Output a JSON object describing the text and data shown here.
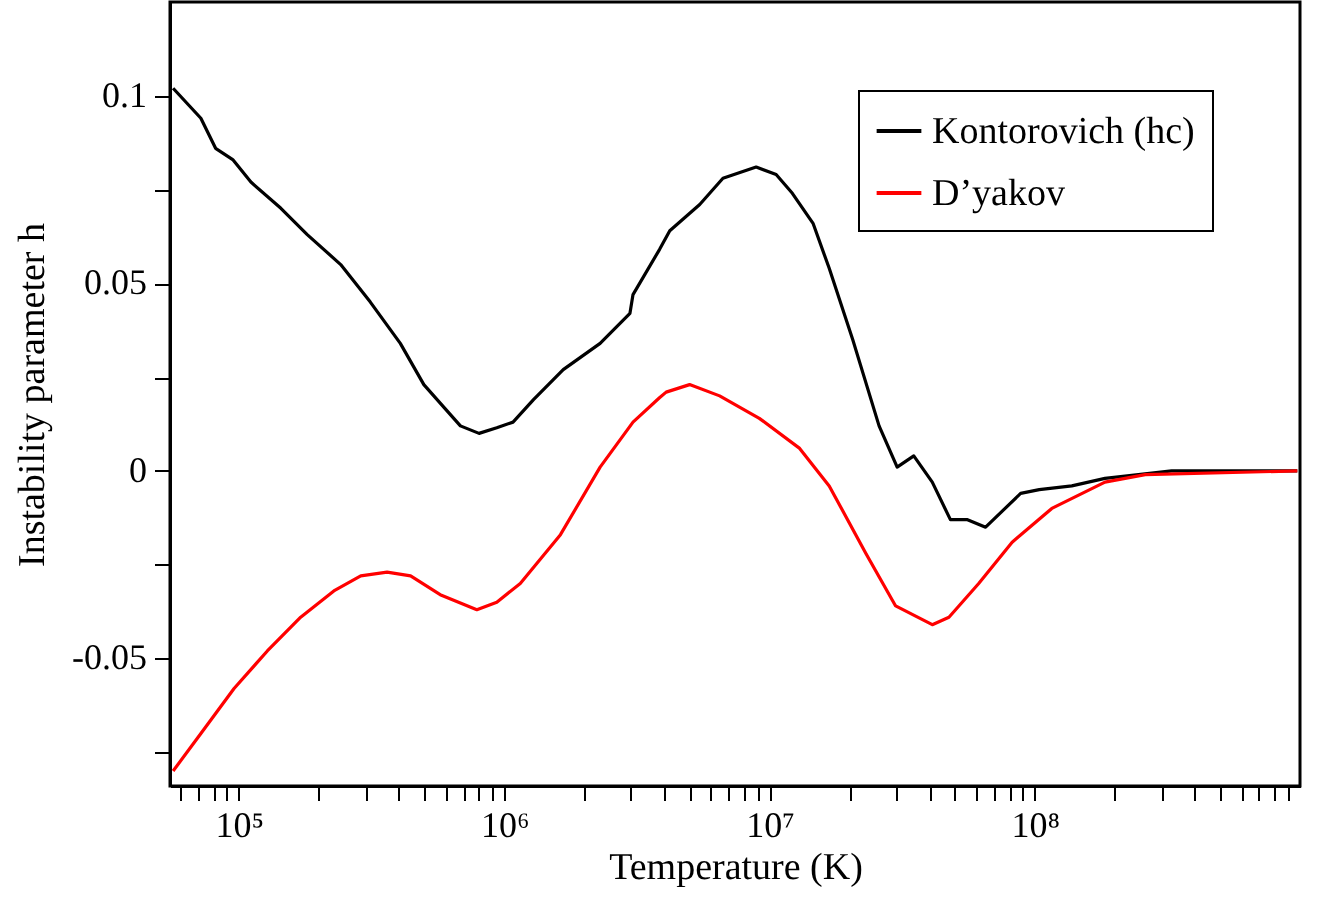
{
  "chart_data": {
    "type": "line",
    "xlabel": "Temperature (K)",
    "ylabel": "Instability parameter h",
    "log": "x",
    "grid": false,
    "legend": "top right",
    "xlim": [
      55000,
      1000000000
    ],
    "ylim": [
      -0.084,
      0.125
    ],
    "xticks": [
      {
        "value": 60000,
        "label": null
      },
      {
        "value": 70000,
        "label": null
      },
      {
        "value": 80000,
        "label": null
      },
      {
        "value": 90000,
        "label": null
      },
      {
        "value": 100000,
        "label": "10⁵"
      },
      {
        "value": 200000,
        "label": null
      },
      {
        "value": 300000,
        "label": null
      },
      {
        "value": 400000,
        "label": null
      },
      {
        "value": 500000,
        "label": null
      },
      {
        "value": 600000,
        "label": null
      },
      {
        "value": 700000,
        "label": null
      },
      {
        "value": 800000,
        "label": null
      },
      {
        "value": 900000,
        "label": null
      },
      {
        "value": 1000000,
        "label": "10⁶"
      },
      {
        "value": 2000000,
        "label": null
      },
      {
        "value": 3000000,
        "label": null
      },
      {
        "value": 4000000,
        "label": null
      },
      {
        "value": 5000000,
        "label": null
      },
      {
        "value": 6000000,
        "label": null
      },
      {
        "value": 7000000,
        "label": null
      },
      {
        "value": 8000000,
        "label": null
      },
      {
        "value": 9000000,
        "label": null
      },
      {
        "value": 10000000,
        "label": "10⁷"
      },
      {
        "value": 20000000,
        "label": null
      },
      {
        "value": 30000000,
        "label": null
      },
      {
        "value": 40000000,
        "label": null
      },
      {
        "value": 50000000,
        "label": null
      },
      {
        "value": 60000000,
        "label": null
      },
      {
        "value": 70000000,
        "label": null
      },
      {
        "value": 80000000,
        "label": null
      },
      {
        "value": 90000000,
        "label": null
      },
      {
        "value": 100000000,
        "label": "10⁸"
      },
      {
        "value": 200000000,
        "label": null
      },
      {
        "value": 300000000,
        "label": null
      },
      {
        "value": 400000000,
        "label": null
      },
      {
        "value": 500000000,
        "label": null
      },
      {
        "value": 600000000,
        "label": null
      },
      {
        "value": 700000000,
        "label": null
      },
      {
        "value": 800000000,
        "label": null
      },
      {
        "value": 900000000,
        "label": null
      }
    ],
    "yticks": [
      {
        "value": -0.075,
        "label": null
      },
      -0.05,
      {
        "value": -0.025,
        "label": null
      },
      0,
      {
        "value": 0.025,
        "label": null
      },
      0.05,
      {
        "value": 0.075,
        "label": null
      },
      0.1
    ],
    "series": [
      {
        "name": "Kontorovich (hc)",
        "color": "#000000",
        "x": [
          56500,
          71900,
          81700,
          94800,
          111000,
          144000,
          181000,
          242000,
          313000,
          406000,
          498000,
          592000,
          684000,
          804000,
          938000,
          1080000,
          1290000,
          1670000,
          2300000,
          2980000,
          3060000,
          3850000,
          4210000,
          5460000,
          6680000,
          8910000,
          10600000,
          12200000,
          14600000,
          16800000,
          20600000,
          25900000,
          30300000,
          35000000,
          41100000,
          48100000,
          55800000,
          65300000,
          88500000,
          104000000,
          138000000,
          184000000,
          246000000,
          328000000,
          977000000
        ],
        "values": [
          0.102,
          0.094,
          0.086,
          0.083,
          0.077,
          0.07,
          0.063,
          0.055,
          0.045,
          0.034,
          0.023,
          0.017,
          0.012,
          0.01,
          0.0115,
          0.013,
          0.019,
          0.027,
          0.034,
          0.042,
          0.047,
          0.059,
          0.064,
          0.071,
          0.078,
          0.081,
          0.079,
          0.074,
          0.066,
          0.054,
          0.035,
          0.012,
          0.001,
          0.004,
          -0.003,
          -0.013,
          -0.013,
          -0.015,
          -0.006,
          -0.005,
          -0.004,
          -0.002,
          -0.001,
          0,
          0
        ]
      },
      {
        "name": "D’yakov",
        "color": "#ff0000",
        "x": [
          56500,
          71900,
          95900,
          128000,
          171000,
          228000,
          288000,
          362000,
          444000,
          574000,
          789000,
          938000,
          1150000,
          1630000,
          2300000,
          3060000,
          3850000,
          4080000,
          5000000,
          6490000,
          9160000,
          13000000,
          16800000,
          23100000,
          29900000,
          41100000,
          47500000,
          61500000,
          82200000,
          116000000,
          184000000,
          261000000,
          977000000
        ],
        "values": [
          -0.08,
          -0.07,
          -0.058,
          -0.048,
          -0.039,
          -0.032,
          -0.028,
          -0.027,
          -0.028,
          -0.033,
          -0.037,
          -0.035,
          -0.03,
          -0.017,
          0.001,
          0.013,
          0.0195,
          0.021,
          0.023,
          0.02,
          0.014,
          0.006,
          -0.004,
          -0.022,
          -0.036,
          -0.041,
          -0.039,
          -0.03,
          -0.019,
          -0.01,
          -0.003,
          -0.001,
          0
        ]
      }
    ]
  }
}
